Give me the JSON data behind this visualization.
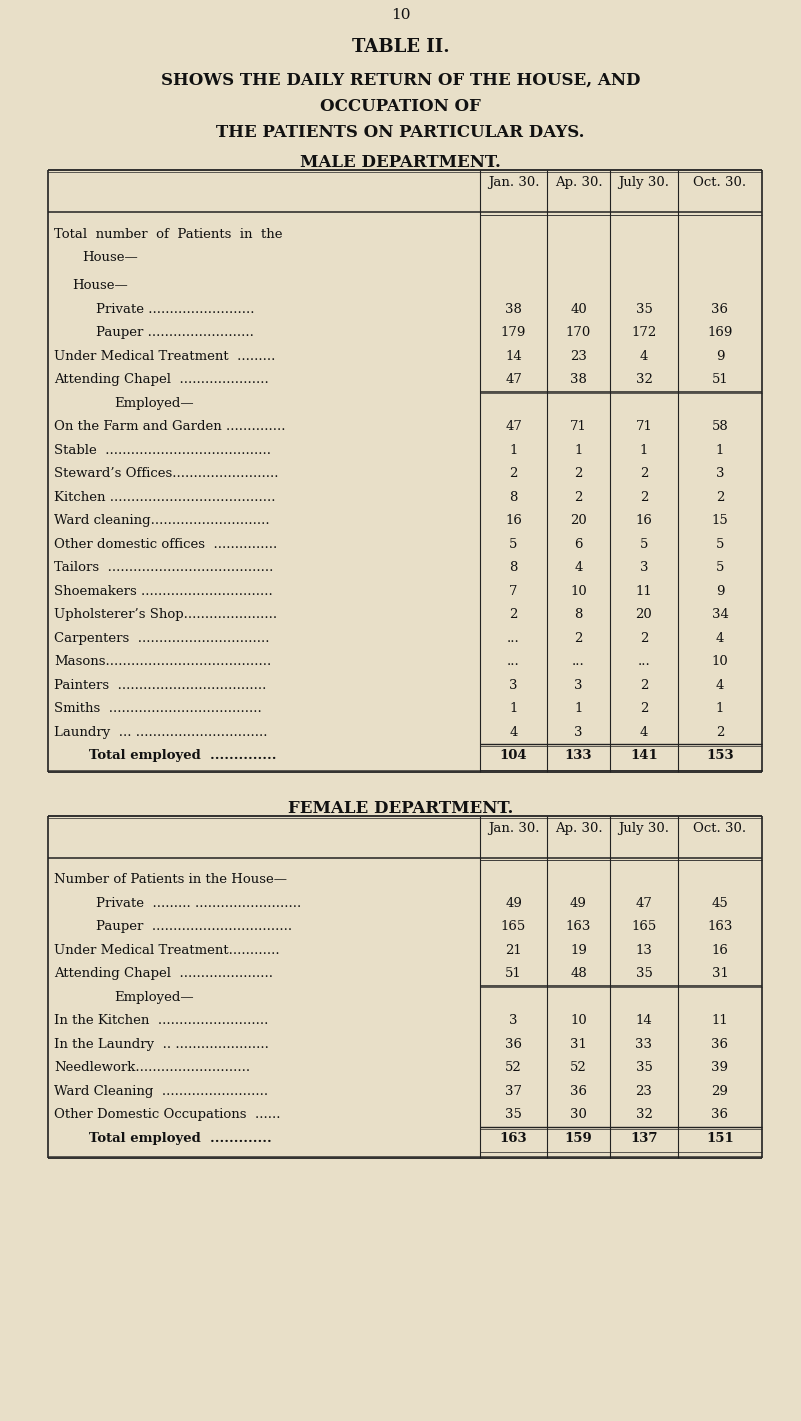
{
  "page_number": "10",
  "title_line1": "TABLE II.",
  "title_line2": "SHOWS THE DAILY RETURN OF THE HOUSE, AND",
  "title_line3": "OCCUPATION OF",
  "title_line4": "THE PATIENTS ON PARTICULAR DAYS.",
  "male_dept_title": "MALE DEPARTMENT.",
  "female_dept_title": "FEMALE DEPARTMENT.",
  "col_headers": [
    "Jan. 30.",
    "Ap. 30.",
    "July 30.",
    "Oct. 30."
  ],
  "male_rows": [
    {
      "label": "Total  number  of  Patients  in  the",
      "indent": 0,
      "vals": [
        "",
        "",
        "",
        ""
      ],
      "extra_height": true
    },
    {
      "label": "House—",
      "indent": 1,
      "vals": [
        "",
        "",
        "",
        ""
      ]
    },
    {
      "label": "Private .........................",
      "indent": 2,
      "vals": [
        "38",
        "40",
        "35",
        "36"
      ]
    },
    {
      "label": "Pauper .........................",
      "indent": 2,
      "vals": [
        "179",
        "170",
        "172",
        "169"
      ]
    },
    {
      "label": "Under Medical Treatment  .........",
      "indent": 0,
      "vals": [
        "14",
        "23",
        "4",
        "9"
      ]
    },
    {
      "label": "Attending Chapel  .....................",
      "indent": 0,
      "vals": [
        "47",
        "38",
        "32",
        "51"
      ]
    },
    {
      "label": "Employed—",
      "indent": 1,
      "vals": [
        "",
        "",
        "",
        ""
      ],
      "sep_before": true
    },
    {
      "label": "On the Farm and Garden ..............",
      "indent": 0,
      "vals": [
        "47",
        "71",
        "71",
        "58"
      ]
    },
    {
      "label": "Stable  .......................................",
      "indent": 0,
      "vals": [
        "1",
        "1",
        "1",
        "1"
      ]
    },
    {
      "label": "Steward’s Offices.........................",
      "indent": 0,
      "vals": [
        "2",
        "2",
        "2",
        "3"
      ]
    },
    {
      "label": "Kitchen .......................................",
      "indent": 0,
      "vals": [
        "8",
        "2",
        "2",
        "2"
      ]
    },
    {
      "label": "Ward cleaning............................",
      "indent": 0,
      "vals": [
        "16",
        "20",
        "16",
        "15"
      ]
    },
    {
      "label": "Other domestic offices  ...............",
      "indent": 0,
      "vals": [
        "5",
        "6",
        "5",
        "5"
      ]
    },
    {
      "label": "Tailors  .......................................",
      "indent": 0,
      "vals": [
        "8",
        "4",
        "3",
        "5"
      ]
    },
    {
      "label": "Shoemakers ...............................",
      "indent": 0,
      "vals": [
        "7",
        "10",
        "11",
        "9"
      ]
    },
    {
      "label": "Upholsterer’s Shop......................",
      "indent": 0,
      "vals": [
        "2",
        "8",
        "20",
        "34"
      ]
    },
    {
      "label": "Carpenters  ...............................",
      "indent": 0,
      "vals": [
        "...",
        "2",
        "2",
        "4"
      ]
    },
    {
      "label": "Masons.......................................",
      "indent": 0,
      "vals": [
        "...",
        "...",
        "...",
        "10"
      ]
    },
    {
      "label": "Painters  ...................................",
      "indent": 0,
      "vals": [
        "3",
        "3",
        "2",
        "4"
      ]
    },
    {
      "label": "Smiths  ....................................",
      "indent": 0,
      "vals": [
        "1",
        "1",
        "2",
        "1"
      ]
    },
    {
      "label": "Laundry  ... ...............................",
      "indent": 0,
      "vals": [
        "4",
        "3",
        "4",
        "2"
      ]
    },
    {
      "label": "Total employed  ..............",
      "indent": 1,
      "vals": [
        "104",
        "133",
        "141",
        "153"
      ],
      "bold": true,
      "total": true,
      "sep_before": true
    }
  ],
  "female_rows": [
    {
      "label": "Number of Patients in the House—",
      "indent": 0,
      "vals": [
        "",
        "",
        "",
        ""
      ]
    },
    {
      "label": "Private  ......... .........................",
      "indent": 2,
      "vals": [
        "49",
        "49",
        "47",
        "45"
      ]
    },
    {
      "label": "Pauper  .................................",
      "indent": 2,
      "vals": [
        "165",
        "163",
        "165",
        "163"
      ]
    },
    {
      "label": "Under Medical Treatment............",
      "indent": 0,
      "vals": [
        "21",
        "19",
        "13",
        "16"
      ]
    },
    {
      "label": "Attending Chapel  ......................",
      "indent": 0,
      "vals": [
        "51",
        "48",
        "35",
        "31"
      ]
    },
    {
      "label": "Employed—",
      "indent": 1,
      "vals": [
        "",
        "",
        "",
        ""
      ],
      "sep_before": true
    },
    {
      "label": "In the Kitchen  ..........................",
      "indent": 0,
      "vals": [
        "3",
        "10",
        "14",
        "11"
      ]
    },
    {
      "label": "In the Laundry  .. ......................",
      "indent": 0,
      "vals": [
        "36",
        "31",
        "33",
        "36"
      ]
    },
    {
      "label": "Needlework...........................",
      "indent": 0,
      "vals": [
        "52",
        "52",
        "35",
        "39"
      ]
    },
    {
      "label": "Ward Cleaning  .........................",
      "indent": 0,
      "vals": [
        "37",
        "36",
        "23",
        "29"
      ]
    },
    {
      "label": "Other Domestic Occupations  ......",
      "indent": 0,
      "vals": [
        "35",
        "30",
        "32",
        "36"
      ]
    },
    {
      "label": "Total employed  .............",
      "indent": 1,
      "vals": [
        "163",
        "159",
        "137",
        "151"
      ],
      "bold": true,
      "total": true,
      "sep_before": true
    }
  ],
  "bg_color": "#e8dfc8",
  "text_color": "#111111",
  "line_color": "#222222"
}
